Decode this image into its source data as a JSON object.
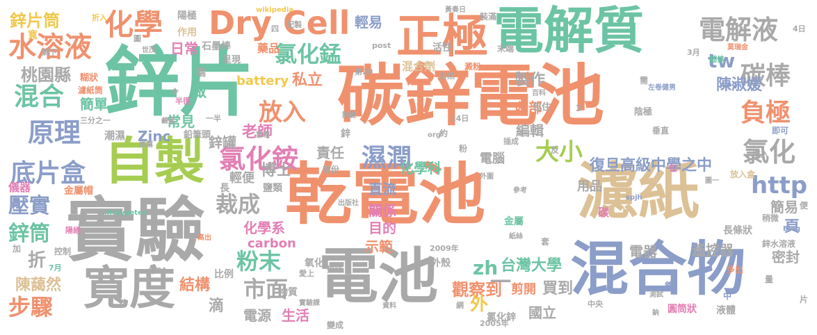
{
  "colors": {
    "orange": "#f0916e",
    "teal": "#6cc4a4",
    "gray": "#a9a9a9",
    "blue": "#8b9dc8",
    "tan": "#dcc196",
    "pink": "#e27fb4",
    "lime": "#a6cd52",
    "yellow": "#f1c84c"
  },
  "words": [
    {
      "text": "乾電池",
      "color": "orange"
    },
    {
      "text": "碳鋅電池",
      "color": "orange"
    },
    {
      "text": "鋅片",
      "color": "teal"
    },
    {
      "text": "實驗",
      "color": "gray"
    },
    {
      "text": "電解質",
      "color": "teal"
    },
    {
      "text": "濾紙",
      "color": "tan"
    },
    {
      "text": "電池",
      "color": "gray"
    },
    {
      "text": "混合物",
      "color": "blue"
    },
    {
      "text": "自製",
      "color": "lime"
    },
    {
      "text": "正極",
      "color": "orange"
    },
    {
      "text": "寬度",
      "color": "gray"
    },
    {
      "text": "Dry Cell",
      "color": "orange"
    },
    {
      "text": "化學",
      "color": "orange"
    },
    {
      "text": "水溶液",
      "color": "orange"
    },
    {
      "text": "電解液",
      "color": "gray"
    },
    {
      "text": "碳棒",
      "color": "gray"
    },
    {
      "text": "氯化錳",
      "color": "teal"
    },
    {
      "text": "氯化銨",
      "color": "pink"
    },
    {
      "text": "負極",
      "color": "orange"
    },
    {
      "text": "氯化",
      "color": "gray"
    },
    {
      "text": "原理",
      "color": "blue"
    },
    {
      "text": "底片盒",
      "color": "blue"
    },
    {
      "text": "混合",
      "color": "teal"
    },
    {
      "text": "濕潤",
      "color": "blue"
    },
    {
      "text": "大小",
      "color": "lime"
    },
    {
      "text": "放入",
      "color": "orange"
    },
    {
      "text": "裁成",
      "color": "gray"
    },
    {
      "text": "粉末",
      "color": "teal"
    },
    {
      "text": "市面",
      "color": "gray"
    },
    {
      "text": "步驟",
      "color": "orange"
    },
    {
      "text": "壓實",
      "color": "blue"
    },
    {
      "text": "鋅筒",
      "color": "teal"
    },
    {
      "text": "鋅片筒",
      "color": "yellow"
    },
    {
      "text": "桃園縣",
      "color": "gray"
    },
    {
      "text": "http",
      "color": "blue"
    },
    {
      "text": "tw",
      "color": "blue"
    },
    {
      "text": "zh",
      "color": "teal"
    },
    {
      "text": "台灣大學",
      "color": "teal"
    },
    {
      "text": "復旦高級中學之中",
      "color": "blue"
    },
    {
      "text": "陳淑媛",
      "color": "blue"
    },
    {
      "text": "陳藹然",
      "color": "tan"
    },
    {
      "text": "博士",
      "color": "gray"
    },
    {
      "text": "老師",
      "color": "pink"
    },
    {
      "text": "私立",
      "color": "orange"
    },
    {
      "text": "日常",
      "color": "pink"
    },
    {
      "text": "簡單",
      "color": "teal"
    },
    {
      "text": "做",
      "color": "teal"
    },
    {
      "text": "常見",
      "color": "teal"
    },
    {
      "text": "鋅罐",
      "color": "gray"
    },
    {
      "text": "輕便",
      "color": "gray"
    },
    {
      "text": "化學科",
      "color": "teal"
    },
    {
      "text": "化學系",
      "color": "pink"
    },
    {
      "text": "目的",
      "color": "pink"
    },
    {
      "text": "關係",
      "color": "pink"
    },
    {
      "text": "直流",
      "color": "blue"
    },
    {
      "text": "示範",
      "color": "orange"
    },
    {
      "text": "觀察到",
      "color": "orange"
    },
    {
      "text": "剪開",
      "color": "orange"
    },
    {
      "text": "買到",
      "color": "gray"
    },
    {
      "text": "國立",
      "color": "gray"
    },
    {
      "text": "結構",
      "color": "orange"
    },
    {
      "text": "滴",
      "color": "gray"
    },
    {
      "text": "電源",
      "color": "gray"
    },
    {
      "text": "生活",
      "color": "pink"
    },
    {
      "text": "電器",
      "color": "gray"
    },
    {
      "text": "遙控器",
      "color": "gray"
    },
    {
      "text": "密封",
      "color": "gray"
    },
    {
      "text": "簡易",
      "color": "gray"
    },
    {
      "text": "頁",
      "color": "blue"
    },
    {
      "text": "用品",
      "color": "gray"
    },
    {
      "text": "編輯",
      "color": "gray"
    },
    {
      "text": "製作",
      "color": "gray"
    },
    {
      "text": "內部",
      "color": "orange"
    },
    {
      "text": "責任",
      "color": "gray"
    },
    {
      "text": "電腦",
      "color": "gray"
    },
    {
      "text": "一",
      "color": "gray"
    },
    {
      "text": "外",
      "color": "yellow"
    },
    {
      "text": "折",
      "color": "gray"
    },
    {
      "text": "carbon",
      "color": "pink"
    },
    {
      "text": "Zinc",
      "color": "blue"
    },
    {
      "text": "battery",
      "color": "yellow"
    },
    {
      "text": "氯化鋅",
      "color": "gray"
    },
    {
      "text": "輕易",
      "color": "blue"
    },
    {
      "text": "混合劑",
      "color": "tan"
    },
    {
      "text": "藥品",
      "color": "orange"
    },
    {
      "text": "作用",
      "color": "tan"
    },
    {
      "text": "陽極",
      "color": "gray"
    },
    {
      "text": "石墨棒",
      "color": "gray"
    },
    {
      "text": "呈現",
      "color": "gray"
    },
    {
      "text": "端",
      "color": "gray"
    },
    {
      "text": "鉛筆頭",
      "color": "gray"
    },
    {
      "text": "潮濕",
      "color": "gray"
    },
    {
      "text": "儀器",
      "color": "pink"
    },
    {
      "text": "金屬帽",
      "color": "orange"
    },
    {
      "text": "金屬",
      "color": "teal"
    },
    {
      "text": "長條狀",
      "color": "gray"
    },
    {
      "text": "鋅水溶液",
      "color": "gray"
    },
    {
      "text": "圓筒狀",
      "color": "pink"
    },
    {
      "text": "液體",
      "color": "gray"
    },
    {
      "text": "放入盒",
      "color": "tan"
    },
    {
      "text": "陰極",
      "color": "gray"
    },
    {
      "text": "垂直",
      "color": "gray"
    },
    {
      "text": "2009年",
      "color": "gray"
    },
    {
      "text": "2005年",
      "color": "gray"
    },
    {
      "text": "4日",
      "color": "gray"
    },
    {
      "text": "wikipedia",
      "color": "yellow"
    },
    {
      "text": "黃奏日",
      "color": "gray"
    },
    {
      "text": "裝滿",
      "color": "gray"
    },
    {
      "text": "活性",
      "color": "gray"
    },
    {
      "text": "末端",
      "color": "gray"
    },
    {
      "text": "澱粉",
      "color": "orange"
    },
    {
      "text": "細條",
      "color": "teal"
    },
    {
      "text": "plog",
      "color": "blue"
    },
    {
      "text": "lifetypetea",
      "color": "teal"
    },
    {
      "text": "spjh",
      "color": "blue"
    },
    {
      "text": "Blog",
      "color": "blue"
    },
    {
      "text": "post",
      "color": "gray"
    },
    {
      "text": "org",
      "color": "gray"
    },
    {
      "text": "物質",
      "color": "gray"
    },
    {
      "text": "比例",
      "color": "gray"
    },
    {
      "text": "氧化",
      "color": "gray"
    },
    {
      "text": "外殼",
      "color": "gray"
    },
    {
      "text": "包住",
      "color": "gray"
    },
    {
      "text": "包",
      "color": "pink"
    },
    {
      "text": "碳",
      "color": "pink"
    },
    {
      "text": "即可",
      "color": "blue"
    },
    {
      "text": "填入",
      "color": "gray"
    },
    {
      "text": "鋅",
      "color": "gray"
    },
    {
      "text": "鹽類",
      "color": "gray"
    },
    {
      "text": "長",
      "color": "gray"
    },
    {
      "text": "控制",
      "color": "gray"
    },
    {
      "text": "加",
      "color": "gray"
    },
    {
      "text": "寬",
      "color": "yellow"
    },
    {
      "text": "粉",
      "color": "gray"
    },
    {
      "text": "約",
      "color": "gray"
    },
    {
      "text": "三分之一",
      "color": "gray"
    },
    {
      "text": "糊狀",
      "color": "orange"
    },
    {
      "text": "濾紙筒",
      "color": "orange"
    },
    {
      "text": "剩下",
      "color": "gray"
    },
    {
      "text": "3月",
      "color": "gray"
    },
    {
      "text": "7月",
      "color": "teal"
    },
    {
      "text": "14日",
      "color": "gray"
    },
    {
      "text": "第20",
      "color": "gray"
    },
    {
      "text": "第21",
      "color": "gray"
    },
    {
      "text": "網",
      "color": "gray"
    },
    {
      "text": "中央",
      "color": "gray"
    },
    {
      "text": "中",
      "color": "blue"
    },
    {
      "text": "量",
      "color": "gray"
    },
    {
      "text": "多出",
      "color": "orange"
    },
    {
      "text": "稍微",
      "color": "gray"
    },
    {
      "text": "便",
      "color": "gray"
    },
    {
      "text": "片",
      "color": "gray"
    },
    {
      "text": "需",
      "color": "gray"
    },
    {
      "text": "左卷健男",
      "color": "blue"
    },
    {
      "text": "莫瑞金",
      "color": "orange"
    },
    {
      "text": "四",
      "color": "gray"
    },
    {
      "text": "配製",
      "color": "gray"
    },
    {
      "text": "折入",
      "color": "yellow"
    },
    {
      "text": "半徑",
      "color": "pink"
    },
    {
      "text": "令",
      "color": "gray"
    },
    {
      "text": "一半",
      "color": "gray"
    },
    {
      "text": "世茂",
      "color": "gray"
    },
    {
      "text": "圖",
      "color": "gray"
    },
    {
      "text": "插成",
      "color": "gray"
    },
    {
      "text": "反",
      "color": "gray"
    },
    {
      "text": "變成",
      "color": "gray"
    },
    {
      "text": "探究",
      "color": "gray"
    },
    {
      "text": "愛上",
      "color": "gray"
    },
    {
      "text": "實驗課",
      "color": "gray"
    },
    {
      "text": "資料",
      "color": "gray"
    },
    {
      "text": "參考",
      "color": "gray"
    },
    {
      "text": "外圍",
      "color": "gray"
    },
    {
      "text": "圖一",
      "color": "gray"
    },
    {
      "text": "百科",
      "color": "gray"
    },
    {
      "text": "自然",
      "color": "gray"
    },
    {
      "text": "出版社",
      "color": "gray"
    },
    {
      "text": "開鍵",
      "color": "gray"
    },
    {
      "text": "紙絲",
      "color": "gray"
    },
    {
      "text": "部份",
      "color": "gray"
    },
    {
      "text": "高出",
      "color": "orange"
    },
    {
      "text": "陽絕",
      "color": "pink"
    },
    {
      "text": "鹼錳",
      "color": "gray"
    },
    {
      "text": "推薦",
      "color": "gray"
    },
    {
      "text": "套",
      "color": "gray"
    },
    {
      "text": "重複",
      "color": "gray"
    },
    {
      "text": "測試",
      "color": "gray"
    },
    {
      "text": "鈉",
      "color": "gray"
    },
    {
      "text": "鍍",
      "color": "blue"
    },
    {
      "text": "3",
      "color": "gray"
    }
  ]
}
